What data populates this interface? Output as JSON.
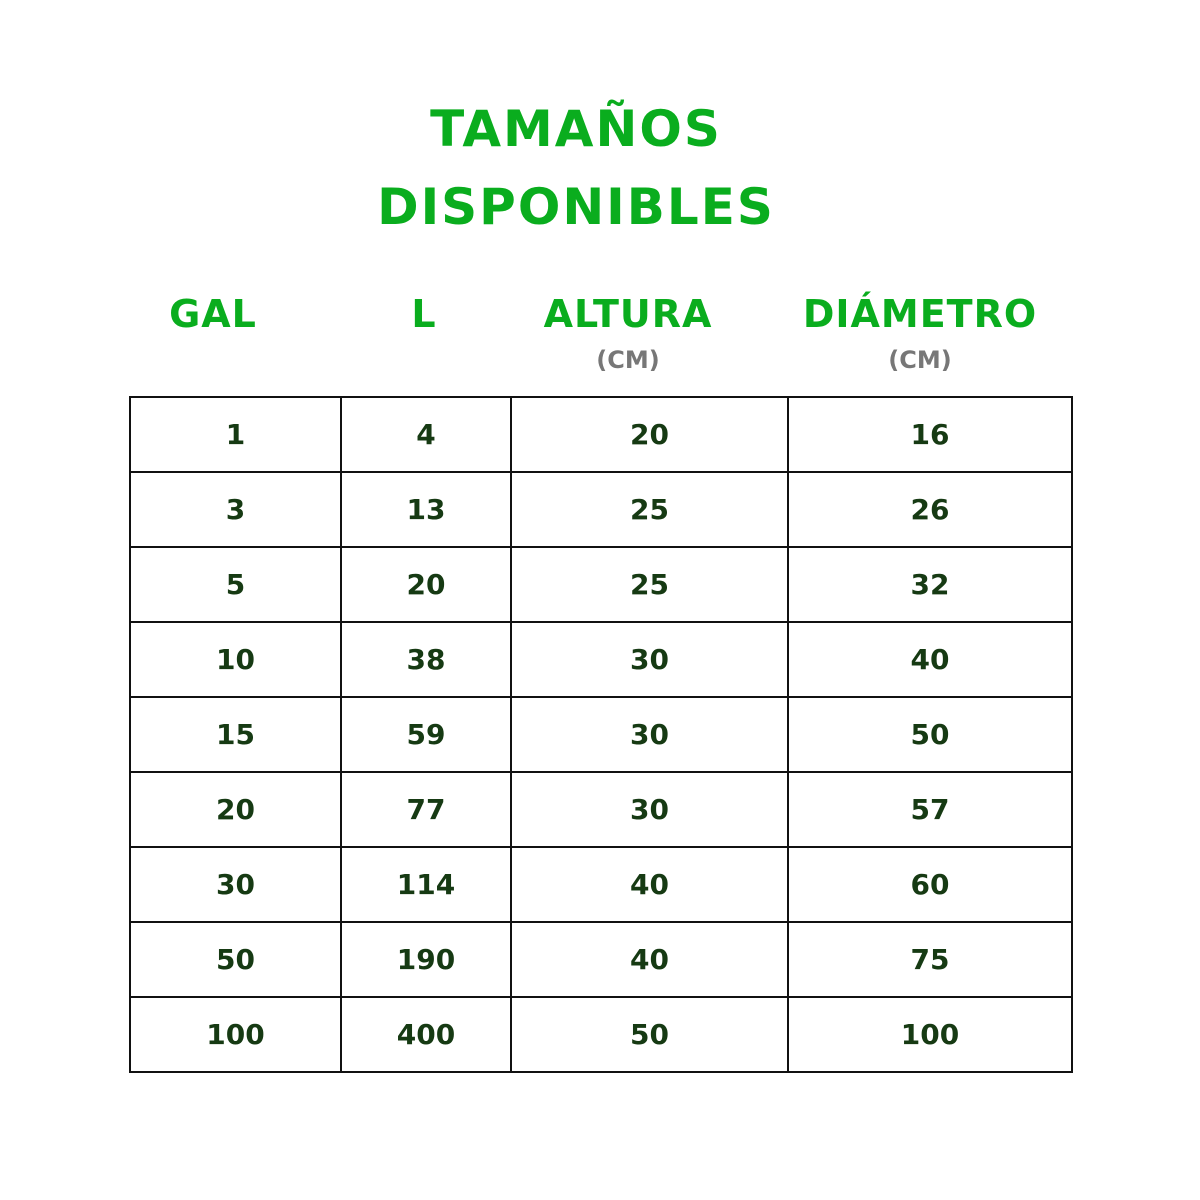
{
  "title": {
    "line1": "TAMAÑOS",
    "line2": "DISPONIBLES"
  },
  "colors": {
    "heading": "#0aad1e",
    "unit": "#777777",
    "cell_text": "#163a13",
    "border": "#111111"
  },
  "columns": [
    {
      "label": "GAL",
      "unit": ""
    },
    {
      "label": "L",
      "unit": ""
    },
    {
      "label": "ALTURA",
      "unit": "(CM)"
    },
    {
      "label": "DIÁMETRO",
      "unit": "(CM)"
    }
  ],
  "rows": [
    [
      "1",
      "4",
      "20",
      "16"
    ],
    [
      "3",
      "13",
      "25",
      "26"
    ],
    [
      "5",
      "20",
      "25",
      "32"
    ],
    [
      "10",
      "38",
      "30",
      "40"
    ],
    [
      "15",
      "59",
      "30",
      "50"
    ],
    [
      "20",
      "77",
      "30",
      "57"
    ],
    [
      "30",
      "114",
      "40",
      "60"
    ],
    [
      "50",
      "190",
      "40",
      "75"
    ],
    [
      "100",
      "400",
      "50",
      "100"
    ]
  ]
}
